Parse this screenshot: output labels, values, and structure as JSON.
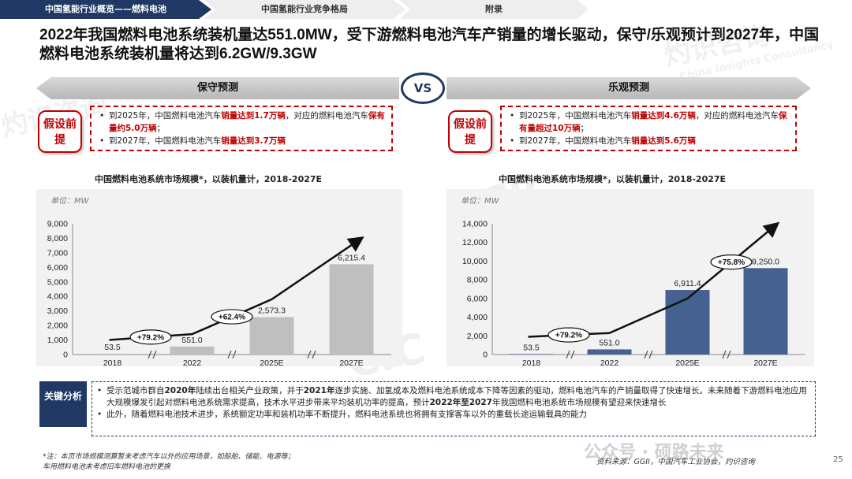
{
  "nav": {
    "tabs": [
      {
        "label": "中国氢能行业概览——燃料电池"
      },
      {
        "label": "中国氢能行业竞争格局"
      },
      {
        "label": "附录"
      }
    ]
  },
  "headline": "2022年我国燃料电池系统装机量达551.0MW，受下游燃料电池汽车产销量的增长驱动，保守/乐观预计到2027年，中国燃料电池系统装机量将达到6.2GW/9.3GW",
  "scenarios": {
    "conservative": "保守预测",
    "vs": "VS",
    "optimistic": "乐观预测"
  },
  "assumption_label": "假设前提",
  "conservative_assumptions": {
    "b1_pre": "到2025年，中国燃料电池汽车",
    "b1_hl1": "销量达到1.7万辆",
    "b1_mid": "，对应的燃料电池汽车",
    "b1_hl2": "保有量约5.0万辆",
    "b1_end": "；",
    "b2_pre": "到2027年，中国燃料电池汽车",
    "b2_hl": "销量达到3.7万辆"
  },
  "optimistic_assumptions": {
    "b1_pre": "到2025年，中国燃料电池汽车",
    "b1_hl1": "销量达到4.6万辆",
    "b1_mid": "，对应的燃料电池汽车",
    "b1_hl2": "保有量超过10万辆",
    "b1_end": "；",
    "b2_pre": "到2027年，中国燃料电池汽车",
    "b2_hl": "销量达到5.6万辆"
  },
  "chart_data": [
    {
      "type": "bar",
      "title": "中国燃料电池系统市场规模*，以装机量计，2018-2027E",
      "unit_label": "单位：MW",
      "categories": [
        "2018",
        "2022",
        "2025E",
        "2027E"
      ],
      "values": [
        53.5,
        551.0,
        2573.3,
        6215.4
      ],
      "value_labels": [
        "53.5",
        "551.0",
        "2,573.3",
        "6,215.4"
      ],
      "ylim": [
        0,
        9000
      ],
      "yticks": [
        "0",
        "1,000",
        "2,000",
        "3,000",
        "4,000",
        "5,000",
        "6,000",
        "7,000",
        "8,000",
        "9,000"
      ],
      "cagr": [
        "+79.2%",
        "+62.4%"
      ],
      "bar_color": "#bfbfbf"
    },
    {
      "type": "bar",
      "title": "中国燃料电池系统市场规模*，以装机量计，2018-2027E",
      "unit_label": "单位：MW",
      "categories": [
        "2018",
        "2022",
        "2025E",
        "2027E"
      ],
      "values": [
        53.5,
        551.0,
        6911.4,
        9250.0
      ],
      "value_labels": [
        "53.5",
        "551.0",
        "6,911.4",
        "9,250.0"
      ],
      "ylim": [
        0,
        14000
      ],
      "yticks": [
        "0",
        "2,000",
        "4,000",
        "6,000",
        "8,000",
        "10,000",
        "12,000",
        "14,000"
      ],
      "cagr": [
        "+79.2%",
        "+75.8%"
      ],
      "bar_color": "#44618f"
    }
  ],
  "key_analysis": {
    "label": "关键分析",
    "b1_a": "受示范城市群自",
    "b1_y1": "2020年",
    "b1_b": "陆续出台相关产业政策，并于",
    "b1_y2": "2021年",
    "b1_c": "逐步实施、加氢成本及燃料电池系统成本下降等因素的驱动，燃料电池汽车的产销量取得了快速增长。未来随着下游燃料电池应用大规模爆发引起对燃料电池系统需求提高，技术水平进步带来平均装机功率的提高，预计",
    "b1_y3": "2022年至2027",
    "b1_d": "年我国燃料电池系统市场规模有望迎来快速增长",
    "b2": "此外，随着燃料电池技术进步，系统额定功率和装机功率不断提升，燃料电池系统也将拥有支撑客车以外的重载长途运输载具的能力"
  },
  "footnote": {
    "line1": "*注：本页市场规模测算暂未考虑汽车以外的应用场景，如船舶、储能、电源等；",
    "line2": "车用燃料电池未考虑旧车燃料电池的更换"
  },
  "source": "资料来源：GGII，中国汽车工业协会，灼识咨询",
  "page_number": "25",
  "watermark": {
    "text1": "灼识咨询",
    "text2": "CIC",
    "text3": "China Insights Consultancy",
    "text4": "公众号 · 硕路未来"
  }
}
